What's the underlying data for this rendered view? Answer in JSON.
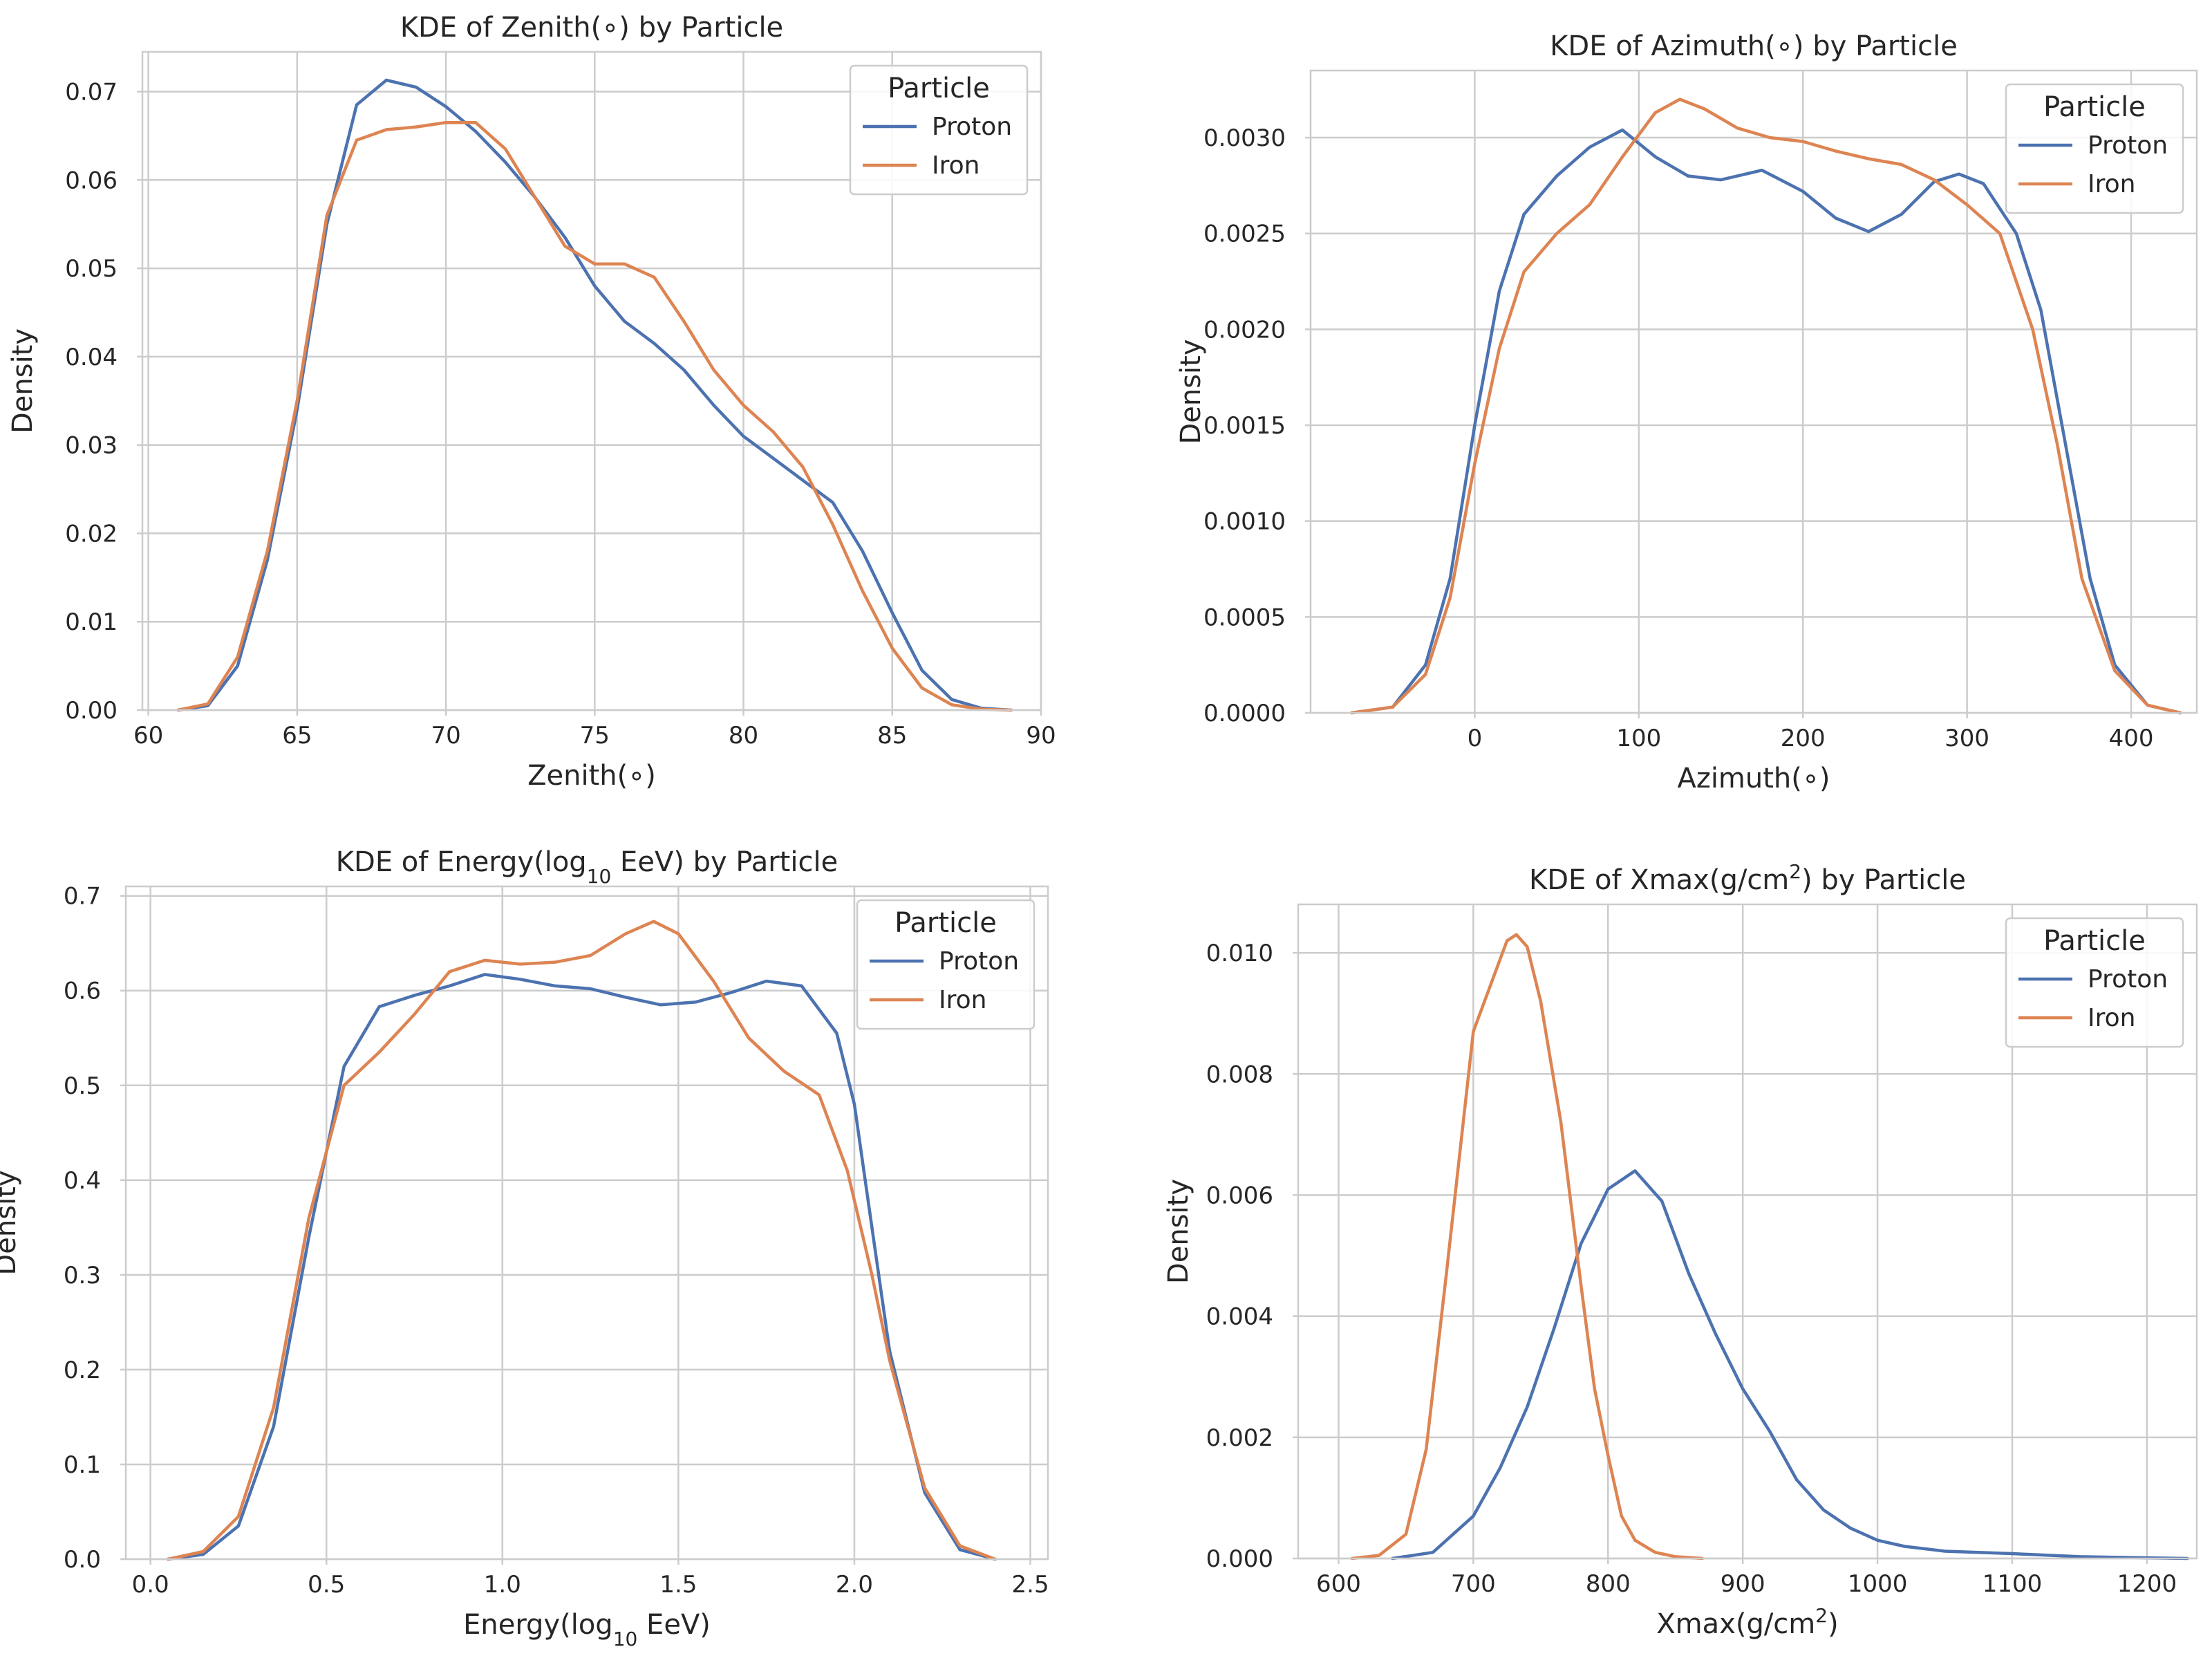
{
  "colors": {
    "proton": "#4c72b0",
    "iron": "#dd8452"
  },
  "chart_data": [
    {
      "type": "line",
      "title": "KDE of Zenith(∘) by Particle",
      "title_html": [
        "KDE of Zenith(∘) by Particle"
      ],
      "xlabel": "Zenith(∘)",
      "ylabel": "Density",
      "xlim": [
        59.8,
        90
      ],
      "ylim": [
        0,
        0.0745
      ],
      "xticks": [
        60,
        65,
        70,
        75,
        80,
        85,
        90
      ],
      "yticks": [
        0.0,
        0.01,
        0.02,
        0.03,
        0.04,
        0.05,
        0.06,
        0.07
      ],
      "ytick_decimals": 2,
      "grid": true,
      "legend": {
        "title": "Particle",
        "entries": [
          "Proton",
          "Iron"
        ],
        "position": "top-right"
      },
      "series": [
        {
          "name": "Proton",
          "color_key": "proton",
          "points": [
            [
              61,
              0
            ],
            [
              62,
              0.0005
            ],
            [
              63,
              0.005
            ],
            [
              64,
              0.017
            ],
            [
              65,
              0.034
            ],
            [
              66,
              0.055
            ],
            [
              67,
              0.0685
            ],
            [
              68,
              0.0713
            ],
            [
              69,
              0.0705
            ],
            [
              70,
              0.0683
            ],
            [
              71,
              0.0655
            ],
            [
              72,
              0.062
            ],
            [
              73,
              0.058
            ],
            [
              74,
              0.0535
            ],
            [
              75,
              0.048
            ],
            [
              76,
              0.044
            ],
            [
              77,
              0.0415
            ],
            [
              78,
              0.0385
            ],
            [
              79,
              0.0345
            ],
            [
              80,
              0.031
            ],
            [
              81,
              0.0285
            ],
            [
              82,
              0.026
            ],
            [
              83,
              0.0235
            ],
            [
              84,
              0.018
            ],
            [
              85,
              0.011
            ],
            [
              86,
              0.0045
            ],
            [
              87,
              0.0012
            ],
            [
              88,
              0.0002
            ],
            [
              89,
              0
            ]
          ]
        },
        {
          "name": "Iron",
          "color_key": "iron",
          "points": [
            [
              61,
              0
            ],
            [
              62,
              0.0007
            ],
            [
              63,
              0.006
            ],
            [
              64,
              0.018
            ],
            [
              65,
              0.035
            ],
            [
              66,
              0.056
            ],
            [
              67,
              0.0645
            ],
            [
              68,
              0.0657
            ],
            [
              69,
              0.066
            ],
            [
              70,
              0.0665
            ],
            [
              71,
              0.0665
            ],
            [
              72,
              0.0635
            ],
            [
              73,
              0.058
            ],
            [
              74,
              0.0525
            ],
            [
              75,
              0.0505
            ],
            [
              76,
              0.0505
            ],
            [
              77,
              0.049
            ],
            [
              78,
              0.044
            ],
            [
              79,
              0.0385
            ],
            [
              80,
              0.0345
            ],
            [
              81,
              0.0315
            ],
            [
              82,
              0.0275
            ],
            [
              83,
              0.021
            ],
            [
              84,
              0.0135
            ],
            [
              85,
              0.007
            ],
            [
              86,
              0.0025
            ],
            [
              87,
              0.0006
            ],
            [
              88,
              0.0001
            ],
            [
              89,
              0
            ]
          ]
        }
      ]
    },
    {
      "type": "line",
      "title": "KDE of Azimuth(∘) by Particle",
      "title_html": [
        "KDE of Azimuth(∘) by Particle"
      ],
      "xlabel": "Azimuth(∘)",
      "ylabel": "Density",
      "xlim": [
        -100,
        440
      ],
      "ylim": [
        0,
        0.00335
      ],
      "xticks": [
        0,
        100,
        200,
        300,
        400
      ],
      "yticks": [
        0.0,
        0.0005,
        0.001,
        0.0015,
        0.002,
        0.0025,
        0.003
      ],
      "ytick_decimals": 4,
      "grid": true,
      "legend": {
        "title": "Particle",
        "entries": [
          "Proton",
          "Iron"
        ],
        "position": "top-right"
      },
      "series": [
        {
          "name": "Proton",
          "color_key": "proton",
          "points": [
            [
              -75,
              0
            ],
            [
              -50,
              3e-05
            ],
            [
              -30,
              0.00025
            ],
            [
              -15,
              0.0007
            ],
            [
              0,
              0.0015
            ],
            [
              15,
              0.0022
            ],
            [
              30,
              0.0026
            ],
            [
              50,
              0.0028
            ],
            [
              70,
              0.00295
            ],
            [
              90,
              0.00304
            ],
            [
              110,
              0.0029
            ],
            [
              130,
              0.0028
            ],
            [
              150,
              0.00278
            ],
            [
              175,
              0.00283
            ],
            [
              200,
              0.00272
            ],
            [
              220,
              0.00258
            ],
            [
              240,
              0.00251
            ],
            [
              260,
              0.0026
            ],
            [
              280,
              0.00277
            ],
            [
              295,
              0.00281
            ],
            [
              310,
              0.00276
            ],
            [
              330,
              0.0025
            ],
            [
              345,
              0.0021
            ],
            [
              360,
              0.0014
            ],
            [
              375,
              0.0007
            ],
            [
              390,
              0.00025
            ],
            [
              410,
              4e-05
            ],
            [
              430,
              0
            ]
          ]
        },
        {
          "name": "Iron",
          "color_key": "iron",
          "points": [
            [
              -75,
              0
            ],
            [
              -50,
              3e-05
            ],
            [
              -30,
              0.0002
            ],
            [
              -15,
              0.0006
            ],
            [
              0,
              0.0013
            ],
            [
              15,
              0.0019
            ],
            [
              30,
              0.0023
            ],
            [
              50,
              0.0025
            ],
            [
              70,
              0.00265
            ],
            [
              90,
              0.0029
            ],
            [
              110,
              0.00313
            ],
            [
              125,
              0.0032
            ],
            [
              140,
              0.00315
            ],
            [
              160,
              0.00305
            ],
            [
              180,
              0.003
            ],
            [
              200,
              0.00298
            ],
            [
              220,
              0.00293
            ],
            [
              240,
              0.00289
            ],
            [
              260,
              0.00286
            ],
            [
              280,
              0.00278
            ],
            [
              300,
              0.00265
            ],
            [
              320,
              0.0025
            ],
            [
              340,
              0.002
            ],
            [
              355,
              0.0014
            ],
            [
              370,
              0.0007
            ],
            [
              390,
              0.00022
            ],
            [
              410,
              4e-05
            ],
            [
              430,
              0
            ]
          ]
        }
      ]
    },
    {
      "type": "line",
      "title": "KDE of Energy(log10 EeV) by Particle",
      "title_html": [
        "KDE of Energy(log",
        "10",
        " EeV) by Particle"
      ],
      "xlabel": "Energy(log10 EeV)",
      "xlabel_parts": [
        "Energy(log",
        "10",
        " EeV)"
      ],
      "ylabel": "Density",
      "xlim": [
        -0.07,
        2.55
      ],
      "ylim": [
        0,
        0.71
      ],
      "xticks": [
        0.0,
        0.5,
        1.0,
        1.5,
        2.0,
        2.5
      ],
      "xtick_decimals": 1,
      "yticks": [
        0.0,
        0.1,
        0.2,
        0.3,
        0.4,
        0.5,
        0.6,
        0.7
      ],
      "ytick_decimals": 1,
      "grid": true,
      "legend": {
        "title": "Particle",
        "entries": [
          "Proton",
          "Iron"
        ],
        "position": "top-right"
      },
      "series": [
        {
          "name": "Proton",
          "color_key": "proton",
          "points": [
            [
              0.05,
              0
            ],
            [
              0.15,
              0.005
            ],
            [
              0.25,
              0.035
            ],
            [
              0.35,
              0.14
            ],
            [
              0.45,
              0.34
            ],
            [
              0.55,
              0.52
            ],
            [
              0.65,
              0.583
            ],
            [
              0.75,
              0.595
            ],
            [
              0.85,
              0.605
            ],
            [
              0.95,
              0.617
            ],
            [
              1.05,
              0.612
            ],
            [
              1.15,
              0.605
            ],
            [
              1.25,
              0.602
            ],
            [
              1.35,
              0.593
            ],
            [
              1.45,
              0.585
            ],
            [
              1.55,
              0.588
            ],
            [
              1.65,
              0.598
            ],
            [
              1.75,
              0.61
            ],
            [
              1.85,
              0.605
            ],
            [
              1.95,
              0.555
            ],
            [
              2.0,
              0.48
            ],
            [
              2.05,
              0.35
            ],
            [
              2.1,
              0.22
            ],
            [
              2.2,
              0.07
            ],
            [
              2.3,
              0.01
            ],
            [
              2.4,
              0
            ]
          ]
        },
        {
          "name": "Iron",
          "color_key": "iron",
          "points": [
            [
              0.05,
              0
            ],
            [
              0.15,
              0.008
            ],
            [
              0.25,
              0.045
            ],
            [
              0.35,
              0.16
            ],
            [
              0.45,
              0.36
            ],
            [
              0.55,
              0.5
            ],
            [
              0.65,
              0.535
            ],
            [
              0.75,
              0.575
            ],
            [
              0.85,
              0.62
            ],
            [
              0.95,
              0.632
            ],
            [
              1.05,
              0.628
            ],
            [
              1.15,
              0.63
            ],
            [
              1.25,
              0.637
            ],
            [
              1.35,
              0.66
            ],
            [
              1.43,
              0.673
            ],
            [
              1.5,
              0.66
            ],
            [
              1.6,
              0.61
            ],
            [
              1.7,
              0.55
            ],
            [
              1.8,
              0.515
            ],
            [
              1.9,
              0.49
            ],
            [
              1.98,
              0.41
            ],
            [
              2.05,
              0.3
            ],
            [
              2.1,
              0.21
            ],
            [
              2.2,
              0.075
            ],
            [
              2.3,
              0.014
            ],
            [
              2.4,
              0
            ]
          ]
        }
      ]
    },
    {
      "type": "line",
      "title": "KDE of Xmax(g/cm2) by Particle",
      "title_html": [
        "KDE of Xmax(g/cm",
        "2",
        ") by Particle"
      ],
      "xlabel": "Xmax(g/cm2)",
      "xlabel_parts": [
        "Xmax(g/cm",
        "2",
        ")"
      ],
      "sup": true,
      "ylabel": "Density",
      "xlim": [
        570,
        1237
      ],
      "ylim": [
        0,
        0.0108
      ],
      "xticks": [
        600,
        700,
        800,
        900,
        1000,
        1100,
        1200
      ],
      "yticks": [
        0.0,
        0.002,
        0.004,
        0.006,
        0.008,
        0.01
      ],
      "ytick_decimals": 3,
      "grid": true,
      "legend": {
        "title": "Particle",
        "entries": [
          "Proton",
          "Iron"
        ],
        "position": "top-right"
      },
      "series": [
        {
          "name": "Proton",
          "color_key": "proton",
          "points": [
            [
              640,
              0
            ],
            [
              670,
              0.0001
            ],
            [
              700,
              0.0007
            ],
            [
              720,
              0.0015
            ],
            [
              740,
              0.0025
            ],
            [
              760,
              0.0038
            ],
            [
              780,
              0.0052
            ],
            [
              800,
              0.0061
            ],
            [
              820,
              0.0064
            ],
            [
              840,
              0.0059
            ],
            [
              860,
              0.0047
            ],
            [
              880,
              0.0037
            ],
            [
              900,
              0.0028
            ],
            [
              920,
              0.0021
            ],
            [
              940,
              0.0013
            ],
            [
              960,
              0.0008
            ],
            [
              980,
              0.0005
            ],
            [
              1000,
              0.0003
            ],
            [
              1020,
              0.0002
            ],
            [
              1050,
              0.00012
            ],
            [
              1100,
              8e-05
            ],
            [
              1150,
              3e-05
            ],
            [
              1200,
              1e-05
            ],
            [
              1230,
              0
            ]
          ]
        },
        {
          "name": "Iron",
          "color_key": "iron",
          "points": [
            [
              610,
              0
            ],
            [
              630,
              5e-05
            ],
            [
              650,
              0.0004
            ],
            [
              665,
              0.0018
            ],
            [
              680,
              0.0047
            ],
            [
              700,
              0.0087
            ],
            [
              715,
              0.0096
            ],
            [
              725,
              0.0102
            ],
            [
              732,
              0.0103
            ],
            [
              740,
              0.0101
            ],
            [
              750,
              0.0092
            ],
            [
              765,
              0.0072
            ],
            [
              780,
              0.0045
            ],
            [
              790,
              0.0028
            ],
            [
              800,
              0.0017
            ],
            [
              810,
              0.0007
            ],
            [
              820,
              0.0003
            ],
            [
              835,
              0.0001
            ],
            [
              850,
              3e-05
            ],
            [
              870,
              0
            ]
          ]
        }
      ]
    }
  ]
}
